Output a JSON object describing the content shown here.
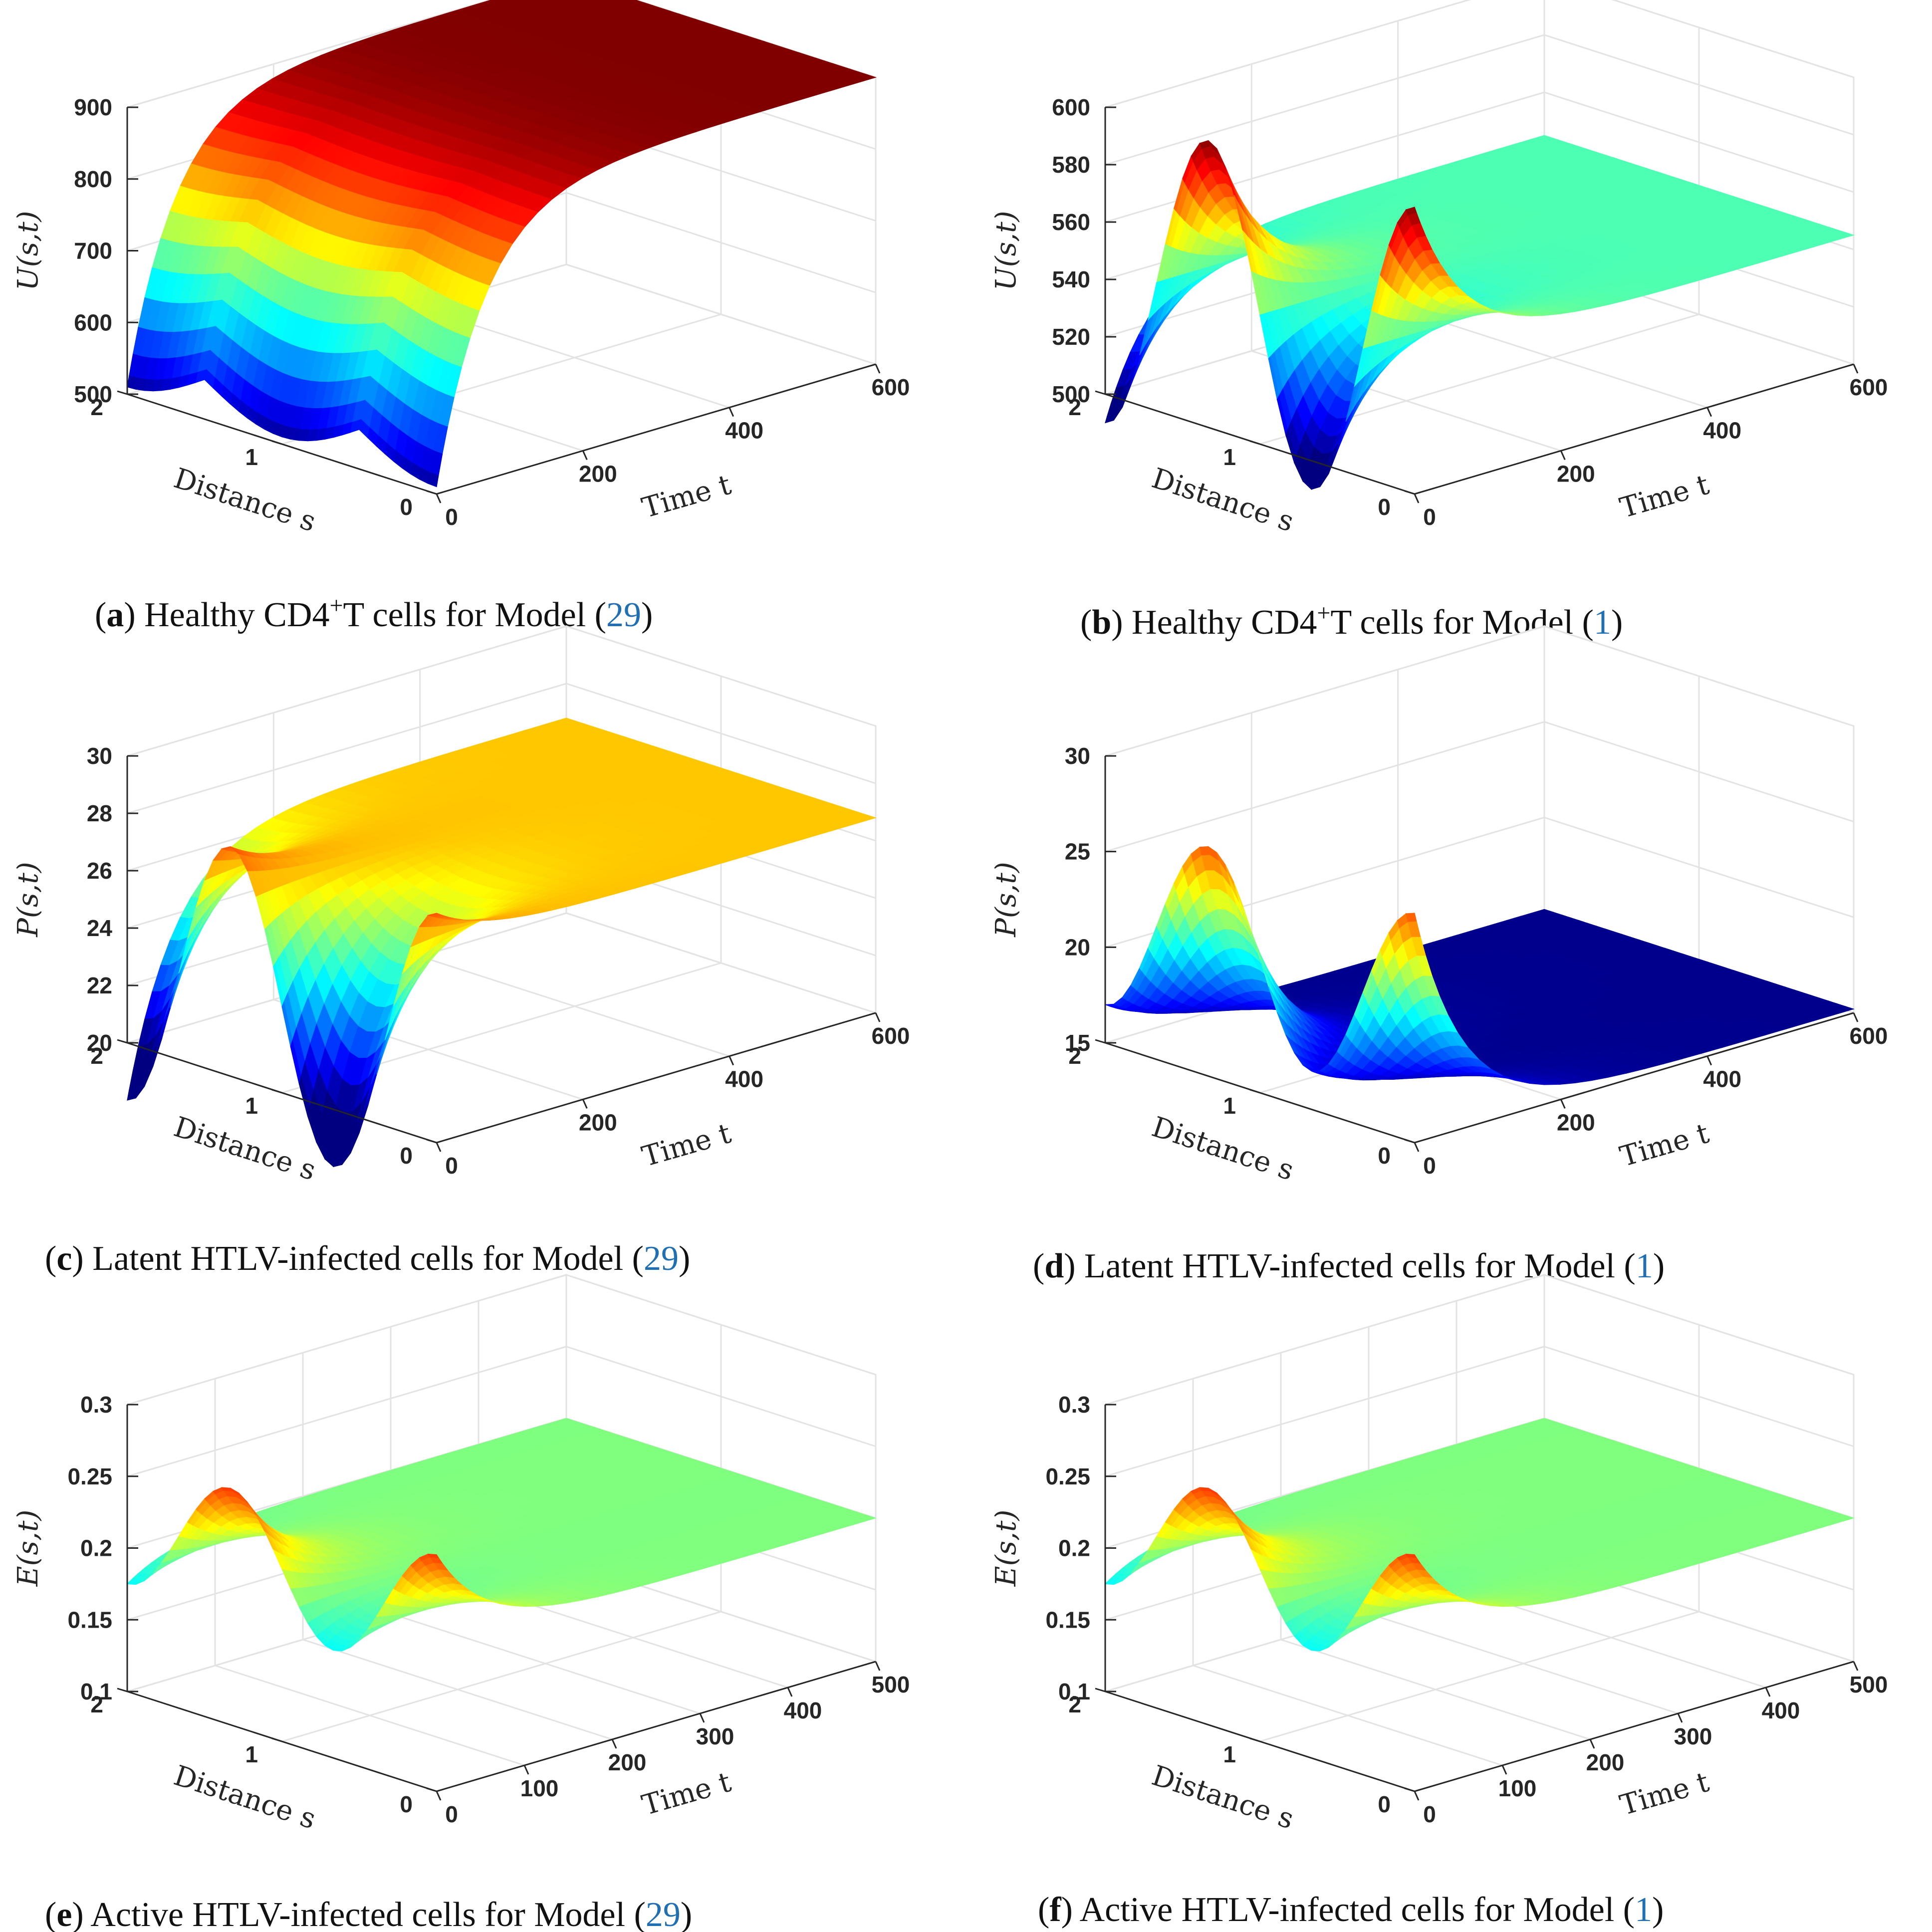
{
  "chart_data": [
    {
      "id": "a",
      "type": "surface",
      "title": "",
      "zlabel": "U(s,t)",
      "xlabel": "Time t",
      "ylabel": "Distance s",
      "xlim": [
        0,
        600
      ],
      "ylim": [
        0,
        2
      ],
      "zlim": [
        500,
        900
      ],
      "x_ticks": [
        0,
        200,
        400,
        600
      ],
      "y_ticks": [
        0,
        1,
        2
      ],
      "z_ticks": [
        500,
        600,
        700,
        800,
        900
      ],
      "initial_condition": {
        "base": 510,
        "amplitude": 45,
        "shape": "bumps_down"
      },
      "steady_value": 900,
      "surface_colors": "jet",
      "caption": {
        "letter": "a",
        "text": "Healthy CD4",
        "sup": "+",
        "text2": "T cells for Model (",
        "ref": "29",
        "close": ")"
      }
    },
    {
      "id": "b",
      "type": "surface",
      "zlabel": "U(s,t)",
      "xlabel": "Time t",
      "ylabel": "Distance s",
      "xlim": [
        0,
        600
      ],
      "ylim": [
        0,
        2
      ],
      "zlim": [
        500,
        600
      ],
      "x_ticks": [
        0,
        200,
        400,
        600
      ],
      "y_ticks": [
        0,
        1,
        2
      ],
      "z_ticks": [
        500,
        520,
        540,
        560,
        580,
        600
      ],
      "initial_condition": {
        "base": 545,
        "amplitude": 55,
        "shape": "oscillating"
      },
      "steady_value": 545,
      "surface_colors": "jet",
      "caption": {
        "letter": "b",
        "text": "Healthy CD4",
        "sup": "+",
        "text2": "T cells for Model (",
        "ref": "1",
        "close": ")"
      }
    },
    {
      "id": "c",
      "type": "surface",
      "zlabel": "P(s,t)",
      "xlabel": "Time t",
      "ylabel": "Distance s",
      "xlim": [
        0,
        600
      ],
      "ylim": [
        0,
        2
      ],
      "zlim": [
        20,
        30
      ],
      "x_ticks": [
        0,
        200,
        400,
        600
      ],
      "y_ticks": [
        0,
        1,
        2
      ],
      "z_ticks": [
        20,
        22,
        24,
        26,
        28,
        30
      ],
      "initial_condition": {
        "base": 23,
        "amplitude": 5,
        "shape": "oscillating"
      },
      "steady_value": 26.8,
      "surface_colors": "jet",
      "caption": {
        "letter": "c",
        "text": "Latent HTLV-infected cells for Model (",
        "ref": "29",
        "close": ")"
      }
    },
    {
      "id": "d",
      "type": "surface",
      "zlabel": "P(s,t)",
      "xlabel": "Time t",
      "ylabel": "Distance s",
      "xlim": [
        0,
        600
      ],
      "ylim": [
        0,
        2
      ],
      "zlim": [
        15,
        30
      ],
      "x_ticks": [
        0,
        200,
        400,
        600
      ],
      "y_ticks": [
        0,
        1,
        2
      ],
      "z_ticks": [
        15,
        20,
        25,
        30
      ],
      "initial_condition": {
        "base": 22,
        "amplitude": 5,
        "shape": "oscillating"
      },
      "steady_value": 15.2,
      "surface_colors": "jet",
      "caption": {
        "letter": "d",
        "text": "Latent HTLV-infected cells for Model (",
        "ref": "1",
        "close": ")"
      }
    },
    {
      "id": "e",
      "type": "surface",
      "zlabel": "E(s,t)",
      "xlabel": "Time t",
      "ylabel": "Distance s",
      "xlim": [
        0,
        500
      ],
      "ylim": [
        0,
        2
      ],
      "zlim": [
        0.1,
        0.3
      ],
      "x_ticks": [
        0,
        100,
        200,
        300,
        400,
        500
      ],
      "y_ticks": [
        0,
        1,
        2
      ],
      "z_ticks": [
        0.1,
        0.15,
        0.2,
        0.25,
        0.3
      ],
      "initial_condition": {
        "base": 0.22,
        "amplitude": 0.05,
        "shape": "bumps_up"
      },
      "steady_value": 0.2,
      "surface_colors": "jet",
      "caption": {
        "letter": "e",
        "text": "Active HTLV-infected cells for Model (",
        "ref": "29",
        "close": ")"
      }
    },
    {
      "id": "f",
      "type": "surface",
      "zlabel": "E(s,t)",
      "xlabel": "Time t",
      "ylabel": "Distance s",
      "xlim": [
        0,
        500
      ],
      "ylim": [
        0,
        2
      ],
      "zlim": [
        0.1,
        0.3
      ],
      "x_ticks": [
        0,
        100,
        200,
        300,
        400,
        500
      ],
      "y_ticks": [
        0,
        1,
        2
      ],
      "z_ticks": [
        0.1,
        0.15,
        0.2,
        0.25,
        0.3
      ],
      "initial_condition": {
        "base": 0.22,
        "amplitude": 0.05,
        "shape": "bumps_up"
      },
      "steady_value": 0.2,
      "surface_colors": "jet",
      "caption": {
        "letter": "f",
        "text": "Active HTLV-infected cells for Model (",
        "ref": "1",
        "close": ")"
      }
    }
  ],
  "colors": {
    "axis": "#262626",
    "grid": "#e3e3e3",
    "caption_ref": "#1f6fb2",
    "jet_low": "#00008f",
    "jet_high": "#800000"
  }
}
